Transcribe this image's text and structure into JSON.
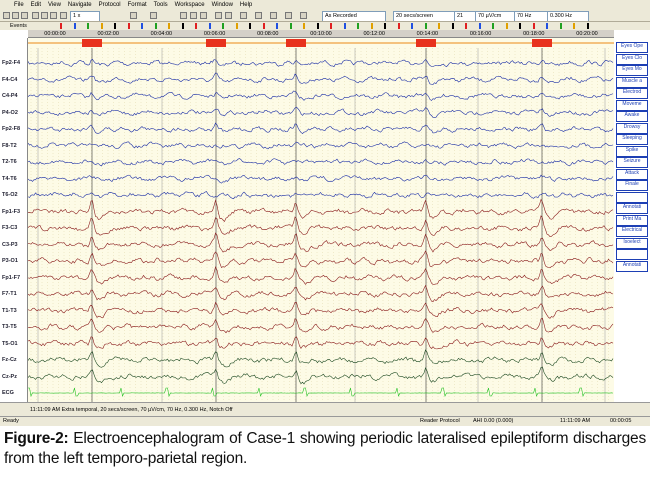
{
  "menu": [
    "File",
    "Edit",
    "View",
    "Navigate",
    "Protocol",
    "Format",
    "Tools",
    "Workspace",
    "Window",
    "Help"
  ],
  "toolbar": {
    "speed": "1 x",
    "montage": "As Recorded",
    "timebase": "20 secs/screen",
    "channel_count": "21",
    "sensitivity": "70 µV/cm",
    "high_filter": "70 Hz",
    "low_filter": "0.300 Hz"
  },
  "events_label": "Events",
  "timeline": [
    "00:00:00",
    "00:02:00",
    "00:04:00",
    "00:06:00",
    "00:08:00",
    "00:10:00",
    "00:12:00",
    "00:14:00",
    "00:16:00",
    "00:18:00",
    "00:20:00"
  ],
  "channels": [
    "Fp2-F4",
    "F4-C4",
    "C4-P4",
    "P4-O2",
    "Fp2-F8",
    "F8-T2",
    "T2-T6",
    "T4-T6",
    "T6-O2",
    "Fp1-F3",
    "F3-C3",
    "C3-P3",
    "P3-O1",
    "Fp1-F7",
    "F7-T1",
    "T1-T3",
    "T3-T5",
    "T5-O1",
    "Fz-Cz",
    "Cz-Pz",
    "ECG"
  ],
  "annotation_buttons": [
    "Eyes Ope",
    "Eyes Clo",
    "Eyes Mo",
    "Muscle a",
    "Electrod",
    "Moveme",
    "Awake",
    "Drowsy",
    "Sleeping",
    "Spike",
    "Seizure",
    "Attack",
    "Finale",
    "Annotati",
    "Print Ma",
    "Electrical",
    "Isoelect",
    "Annotati"
  ],
  "status": {
    "info": "11:11:09 AM Extra temporal, 20 secs/screen, 70 µV/cm, 70 Hz, 0.300 Hz, Notch Off",
    "ready": "Ready",
    "protocol": "Reader Protocol",
    "ahi": "AHI 0.00 (0.000)",
    "clock": "11:11:09 AM",
    "elapsed": "00:00:05"
  },
  "caption": {
    "label": "Figure-2:",
    "text": "Electroencephalogram of Case-1 showing periodic lateralised epileptiform discharges from the left temporo-parietal region."
  }
}
